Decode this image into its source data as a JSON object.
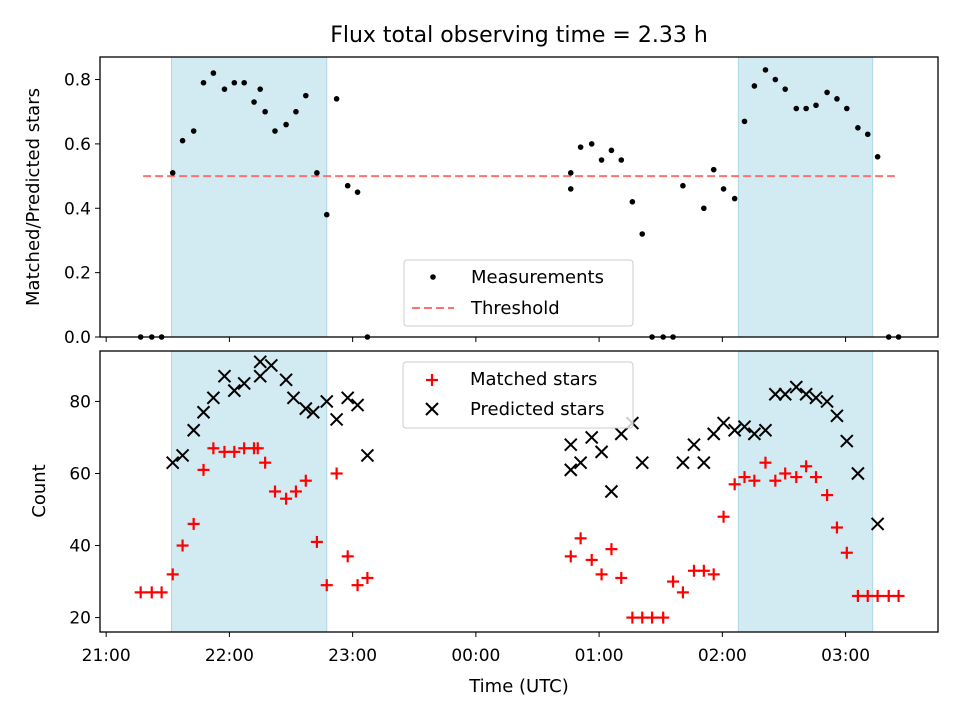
{
  "figure": {
    "title": "Flux total observing time = 2.33 h",
    "xlabel": "Time (UTC)"
  },
  "chart_data": [
    {
      "type": "scatter",
      "panel": "top",
      "ylabel": "Matched/Predicted stars",
      "x_unit": "hours since 21:00 UTC",
      "xlim": [
        -0.05,
        6.75
      ],
      "ylim": [
        0,
        0.87
      ],
      "y_ticks": [
        0.0,
        0.2,
        0.4,
        0.6,
        0.8
      ],
      "x_tick_labels": [
        "21:00",
        "22:00",
        "23:00",
        "00:00",
        "01:00",
        "02:00",
        "03:00"
      ],
      "shaded_spans": [
        [
          0.53,
          1.79
        ],
        [
          5.13,
          6.22
        ]
      ],
      "shade_color": "#add8e6",
      "threshold": {
        "y": 0.5,
        "x_range": [
          0.3,
          6.4
        ],
        "color": "#ff7070"
      },
      "legend": {
        "position": "bottom-center",
        "entries": [
          "Measurements",
          "Threshold"
        ]
      },
      "series": [
        {
          "name": "Measurements",
          "marker": "dot",
          "color": "#000000",
          "x": [
            0.28,
            0.37,
            0.45,
            0.54,
            0.62,
            0.71,
            0.79,
            0.87,
            0.96,
            1.04,
            1.12,
            1.2,
            1.25,
            1.29,
            1.37,
            1.46,
            1.54,
            1.62,
            1.71,
            1.79,
            1.87,
            1.96,
            2.04,
            2.12,
            3.77,
            3.77,
            3.85,
            3.94,
            4.02,
            4.1,
            4.18,
            4.27,
            4.35,
            4.43,
            4.52,
            4.6,
            4.68,
            4.85,
            4.93,
            5.01,
            5.1,
            5.18,
            5.26,
            5.35,
            5.43,
            5.51,
            5.6,
            5.68,
            5.76,
            5.85,
            5.93,
            6.01,
            6.1,
            6.18,
            6.26,
            6.35,
            6.43
          ],
          "y": [
            0,
            0,
            0,
            0.51,
            0.61,
            0.64,
            0.79,
            0.82,
            0.77,
            0.79,
            0.79,
            0.73,
            0.77,
            0.7,
            0.64,
            0.66,
            0.7,
            0.75,
            0.51,
            0.38,
            0.74,
            0.47,
            0.45,
            0,
            0.51,
            0.46,
            0.59,
            0.6,
            0.55,
            0.58,
            0.55,
            0.42,
            0.32,
            0,
            0,
            0,
            0.47,
            0.4,
            0.52,
            0.46,
            0.43,
            0.67,
            0.78,
            0.83,
            0.8,
            0.77,
            0.71,
            0.71,
            0.72,
            0.76,
            0.74,
            0.71,
            0.65,
            0.63,
            0.56,
            0,
            0
          ]
        },
        {
          "name": "Threshold",
          "marker": "dashed-line",
          "color": "#ff7070"
        }
      ]
    },
    {
      "type": "scatter",
      "panel": "bottom",
      "ylabel": "Count",
      "x_unit": "hours since 21:00 UTC",
      "xlim": [
        -0.05,
        6.75
      ],
      "ylim": [
        16,
        94
      ],
      "y_ticks": [
        20,
        40,
        60,
        80
      ],
      "x_tick_labels": [
        "21:00",
        "22:00",
        "23:00",
        "00:00",
        "01:00",
        "02:00",
        "03:00"
      ],
      "shaded_spans": [
        [
          0.53,
          1.79
        ],
        [
          5.13,
          6.22
        ]
      ],
      "shade_color": "#add8e6",
      "legend": {
        "position": "top-center",
        "entries": [
          "Matched stars",
          "Predicted stars"
        ]
      },
      "series": [
        {
          "name": "Matched stars",
          "marker": "plus",
          "color": "#ff0000",
          "x": [
            0.28,
            0.37,
            0.45,
            0.54,
            0.62,
            0.71,
            0.79,
            0.87,
            0.96,
            1.04,
            1.12,
            1.2,
            1.23,
            1.29,
            1.37,
            1.46,
            1.54,
            1.62,
            1.71,
            1.79,
            1.87,
            1.96,
            2.04,
            2.12,
            3.77,
            3.85,
            3.94,
            4.02,
            4.1,
            4.18,
            4.27,
            4.35,
            4.43,
            4.52,
            4.6,
            4.68,
            4.77,
            4.85,
            4.93,
            5.01,
            5.1,
            5.18,
            5.26,
            5.35,
            5.43,
            5.51,
            5.6,
            5.68,
            5.76,
            5.85,
            5.93,
            6.01,
            6.1,
            6.18,
            6.26,
            6.35,
            6.43
          ],
          "y": [
            27,
            27,
            27,
            32,
            40,
            46,
            61,
            67,
            66,
            66,
            67,
            67,
            67,
            63,
            55,
            53,
            55,
            58,
            41,
            29,
            60,
            37,
            29,
            31,
            37,
            42,
            36,
            32,
            39,
            31,
            20,
            20,
            20,
            20,
            30,
            27,
            33,
            33,
            32,
            48,
            57,
            59,
            58,
            63,
            58,
            60,
            59,
            62,
            59,
            54,
            45,
            38,
            26,
            26,
            26,
            26,
            26
          ]
        },
        {
          "name": "Predicted stars",
          "marker": "x",
          "color": "#000000",
          "x": [
            0.54,
            0.62,
            0.71,
            0.79,
            0.87,
            0.96,
            1.04,
            1.12,
            1.25,
            1.25,
            1.34,
            1.46,
            1.52,
            1.62,
            1.68,
            1.79,
            1.87,
            1.96,
            2.04,
            2.12,
            3.77,
            3.77,
            3.85,
            3.94,
            4.02,
            4.1,
            4.18,
            4.27,
            4.35,
            4.68,
            4.77,
            4.85,
            4.93,
            5.01,
            5.1,
            5.18,
            5.26,
            5.35,
            5.43,
            5.51,
            5.6,
            5.68,
            5.76,
            5.85,
            5.93,
            6.01,
            6.1,
            6.26
          ],
          "y": [
            63,
            65,
            72,
            77,
            81,
            87,
            83,
            85,
            91,
            87,
            90,
            86,
            81,
            78,
            77,
            80,
            75,
            81,
            79,
            65,
            68,
            61,
            63,
            70,
            66,
            55,
            71,
            74,
            63,
            63,
            68,
            63,
            71,
            74,
            72,
            73,
            71,
            72,
            82,
            82,
            84,
            82,
            81,
            80,
            76,
            69,
            60,
            46
          ]
        }
      ]
    }
  ]
}
